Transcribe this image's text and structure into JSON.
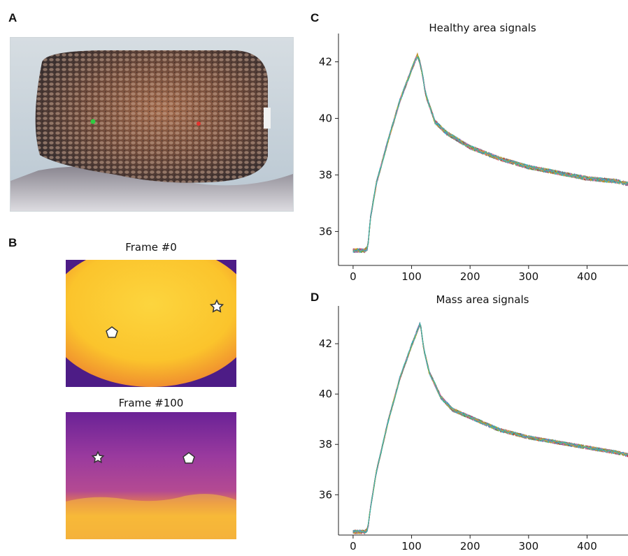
{
  "figure": {
    "panels": [
      "A",
      "B",
      "C",
      "D"
    ],
    "frame_titles": [
      "Frame #0",
      "Frame #100"
    ]
  },
  "colors": {
    "heat_bright": "#fbc42c",
    "heat_dark": "#5a1e8a",
    "heat_mid": "#a23a9a",
    "photo_bg": "#c9d6df",
    "marker_green": "#2ecc40",
    "marker_red": "#e4332f"
  },
  "icons": [
    "pentagon-marker-icon",
    "star-marker-icon"
  ],
  "chart_data": [
    {
      "type": "line",
      "title": "Healthy area signals",
      "xlabel": "",
      "ylabel": "",
      "xlim": [
        -25,
        470
      ],
      "ylim": [
        34.8,
        43.0
      ],
      "xticks": [
        0,
        100,
        200,
        300,
        400
      ],
      "yticks": [
        36,
        38,
        40,
        42
      ],
      "grid": false,
      "series_count": 30,
      "envelope": {
        "x": [
          0,
          20,
          25,
          30,
          40,
          60,
          80,
          100,
          110,
          115,
          125,
          140,
          160,
          200,
          250,
          300,
          350,
          400,
          450,
          470
        ],
        "y": [
          35.4,
          35.4,
          35.5,
          36.6,
          37.8,
          39.3,
          40.7,
          41.8,
          42.3,
          42.0,
          40.9,
          40.0,
          39.6,
          39.1,
          38.7,
          38.4,
          38.2,
          38.0,
          37.9,
          37.8
        ]
      }
    },
    {
      "type": "line",
      "title": "Mass area signals",
      "xlabel": "",
      "ylabel": "",
      "xlim": [
        -25,
        470
      ],
      "ylim": [
        34.4,
        43.5
      ],
      "xticks": [
        0,
        100,
        200,
        300,
        400
      ],
      "yticks": [
        36,
        38,
        40,
        42
      ],
      "grid": false,
      "series_count": 30,
      "envelope": {
        "x": [
          0,
          20,
          25,
          30,
          40,
          60,
          80,
          100,
          115,
          120,
          130,
          150,
          170,
          200,
          250,
          300,
          350,
          400,
          450,
          470
        ],
        "y": [
          34.6,
          34.6,
          34.7,
          35.6,
          37.0,
          39.0,
          40.7,
          42.0,
          42.9,
          42.0,
          41.0,
          40.0,
          39.5,
          39.2,
          38.7,
          38.4,
          38.2,
          38.0,
          37.8,
          37.7
        ]
      }
    }
  ]
}
